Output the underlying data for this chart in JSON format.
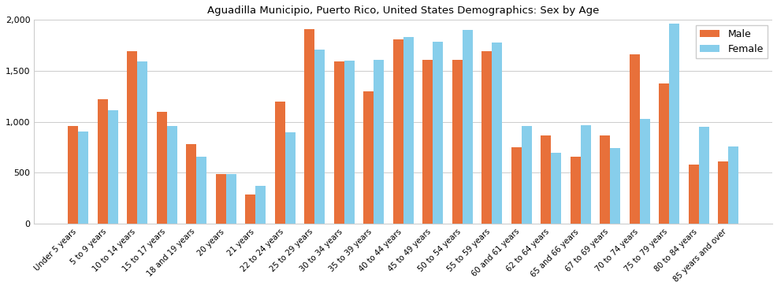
{
  "title": "Aguadilla Municipio, Puerto Rico, United States Demographics: Sex by Age",
  "categories": [
    "Under 5 years",
    "5 to 9 years",
    "10 to 14 years",
    "15 to 17 years",
    "18 and 19 years",
    "20 years",
    "21 years",
    "22 to 24 years",
    "25 to 29 years",
    "30 to 34 years",
    "35 to 39 years",
    "40 to 44 years",
    "45 to 49 years",
    "50 to 54 years",
    "55 to 59 years",
    "60 and 61 years",
    "62 to 64 years",
    "65 and 66 years",
    "67 to 69 years",
    "70 to 74 years",
    "75 to 79 years",
    "80 to 84 years",
    "85 years and over"
  ],
  "male": [
    960,
    1220,
    1690,
    1100,
    780,
    490,
    290,
    1200,
    1910,
    1590,
    1300,
    1810,
    1610,
    1610,
    1690,
    750,
    870,
    660,
    870,
    1660,
    1380,
    580,
    615
  ],
  "female": [
    905,
    1115,
    1590,
    960,
    660,
    490,
    370,
    900,
    1710,
    1600,
    1610,
    1830,
    1785,
    1900,
    1775,
    960,
    695,
    965,
    745,
    1025,
    1965,
    950,
    760
  ],
  "male_color": "#E8703A",
  "female_color": "#87CEEB",
  "ylim": [
    0,
    2000
  ],
  "yticks": [
    0,
    500,
    1000,
    1500,
    2000
  ],
  "bar_width": 0.35,
  "legend_labels": [
    "Male",
    "Female"
  ],
  "figsize": [
    9.87,
    3.67
  ],
  "dpi": 100
}
